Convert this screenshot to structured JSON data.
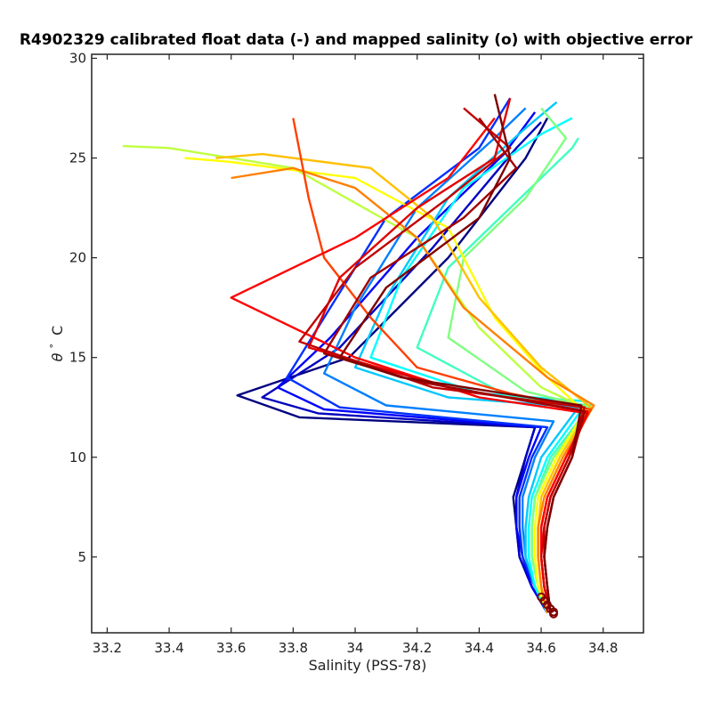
{
  "chart_data": {
    "type": "line",
    "title": "R4902329 calibrated float data (-) and mapped salinity (o) with objective error",
    "xlabel": "Salinity (PSS-78)",
    "ylabel_symbol": "θ",
    "ylabel_unit": "C",
    "xlim": [
      33.15,
      34.93
    ],
    "ylim": [
      1.2,
      30.2
    ],
    "x_ticks": [
      "33.2",
      "33.4",
      "33.6",
      "33.8",
      "34",
      "34.2",
      "34.4",
      "34.6",
      "34.8"
    ],
    "y_ticks": [
      "5",
      "10",
      "15",
      "20",
      "25",
      "30"
    ],
    "grid": false,
    "legend": "none",
    "colormap": "jet",
    "colormap_stops": [
      "#00007f",
      "#0000ff",
      "#00ffff",
      "#ffff00",
      "#ff0000",
      "#7f0000"
    ],
    "series": [
      {
        "color": "#00007f",
        "x": [
          34.62,
          34.57,
          34.53,
          34.52,
          34.51,
          34.55,
          34.58,
          33.82,
          33.62,
          33.98,
          34.3,
          34.55,
          34.62
        ],
        "y": [
          2.2,
          3.5,
          5.0,
          6.5,
          8.0,
          10.0,
          11.5,
          12.0,
          13.1,
          15.0,
          20.0,
          25.0,
          27.0
        ]
      },
      {
        "color": "#0000c0",
        "x": [
          34.62,
          34.57,
          34.53,
          34.52,
          34.52,
          34.55,
          34.58,
          33.88,
          33.7,
          33.95,
          34.25,
          34.52,
          34.6
        ],
        "y": [
          2.2,
          3.5,
          5.0,
          6.5,
          8.0,
          10.0,
          11.5,
          12.2,
          13.0,
          15.5,
          20.5,
          25.5,
          26.8
        ]
      },
      {
        "color": "#0000ff",
        "x": [
          34.62,
          34.57,
          34.54,
          34.52,
          34.52,
          34.56,
          34.6,
          33.9,
          33.75,
          33.92,
          34.2,
          34.48,
          34.58
        ],
        "y": [
          2.2,
          3.5,
          5.0,
          6.5,
          8.0,
          10.0,
          11.5,
          12.4,
          13.5,
          16.0,
          21.0,
          25.2,
          27.3
        ]
      },
      {
        "color": "#0030ff",
        "x": [
          34.62,
          34.58,
          34.54,
          34.53,
          34.53,
          34.57,
          34.62,
          33.95,
          33.78,
          33.9,
          34.1,
          34.4,
          34.5
        ],
        "y": [
          2.2,
          3.5,
          5.0,
          6.5,
          8.0,
          10.0,
          11.5,
          12.5,
          14.0,
          17.0,
          22.0,
          25.5,
          28.0
        ]
      },
      {
        "color": "#0080ff",
        "x": [
          34.62,
          34.58,
          34.55,
          34.54,
          34.54,
          34.58,
          34.64,
          34.1,
          33.9,
          34.0,
          34.2,
          34.45,
          34.55
        ],
        "y": [
          2.2,
          3.5,
          5.0,
          6.5,
          8.0,
          10.0,
          11.8,
          12.6,
          14.2,
          17.5,
          22.5,
          26.0,
          27.5
        ]
      },
      {
        "color": "#00c8ff",
        "x": [
          34.62,
          34.58,
          34.55,
          34.55,
          34.56,
          34.6,
          34.72,
          34.3,
          34.0,
          34.1,
          34.3,
          34.55,
          34.65
        ],
        "y": [
          2.2,
          3.5,
          5.0,
          6.5,
          8.0,
          10.0,
          12.5,
          13.0,
          14.5,
          18.0,
          23.0,
          26.5,
          27.8
        ]
      },
      {
        "color": "#00ffff",
        "x": [
          34.62,
          34.58,
          34.56,
          34.56,
          34.57,
          34.62,
          34.75,
          34.4,
          34.05,
          34.15,
          34.35,
          34.6,
          34.7
        ],
        "y": [
          2.2,
          3.5,
          5.0,
          6.5,
          8.0,
          10.0,
          12.8,
          13.2,
          15.0,
          19.0,
          23.5,
          26.2,
          27.0
        ]
      },
      {
        "color": "#40ffbf",
        "x": [
          34.62,
          34.59,
          34.57,
          34.57,
          34.58,
          34.63,
          34.76,
          34.5,
          34.2,
          34.3,
          34.5,
          34.7,
          34.72
        ],
        "y": [
          2.2,
          3.5,
          5.0,
          6.5,
          8.0,
          10.0,
          12.6,
          13.0,
          15.5,
          19.5,
          22.5,
          25.5,
          26.0
        ]
      },
      {
        "color": "#80ff80",
        "x": [
          34.62,
          34.59,
          34.57,
          34.57,
          34.58,
          34.64,
          34.76,
          34.55,
          34.3,
          34.35,
          34.55,
          34.68,
          34.6
        ],
        "y": [
          2.2,
          3.5,
          5.0,
          6.5,
          8.0,
          10.0,
          12.5,
          13.3,
          16.0,
          20.0,
          23.0,
          26.0,
          27.5
        ]
      },
      {
        "color": "#bfff40",
        "x": [
          34.62,
          34.59,
          34.58,
          34.58,
          34.59,
          34.65,
          34.75,
          34.6,
          34.4,
          34.2,
          33.8,
          33.4,
          33.25
        ],
        "y": [
          2.2,
          3.5,
          5.0,
          6.5,
          8.0,
          10.0,
          12.4,
          13.5,
          16.5,
          21.0,
          24.5,
          25.5,
          25.6
        ]
      },
      {
        "color": "#ffff00",
        "x": [
          34.62,
          34.59,
          34.58,
          34.58,
          34.59,
          34.65,
          34.74,
          34.62,
          34.45,
          34.3,
          34.0,
          33.6,
          33.45
        ],
        "y": [
          2.2,
          3.5,
          5.0,
          6.5,
          8.0,
          10.0,
          12.3,
          14.0,
          17.0,
          21.5,
          24.0,
          24.8,
          25.0
        ]
      },
      {
        "color": "#ffc000",
        "x": [
          34.62,
          34.6,
          34.59,
          34.59,
          34.6,
          34.66,
          34.76,
          34.6,
          34.4,
          34.25,
          34.05,
          33.7,
          33.55
        ],
        "y": [
          2.2,
          3.5,
          5.0,
          6.5,
          8.0,
          10.0,
          12.5,
          14.5,
          18.0,
          22.0,
          24.5,
          25.2,
          25.0
        ]
      },
      {
        "color": "#ff8000",
        "x": [
          34.62,
          34.6,
          34.59,
          34.59,
          34.61,
          34.67,
          34.77,
          34.62,
          34.35,
          34.2,
          34.0,
          33.8,
          33.6
        ],
        "y": [
          2.2,
          3.5,
          5.0,
          6.5,
          8.0,
          10.0,
          12.6,
          14.0,
          17.5,
          21.0,
          23.5,
          24.5,
          24.0
        ]
      },
      {
        "color": "#ff4000",
        "x": [
          34.63,
          34.61,
          34.6,
          34.6,
          34.62,
          34.68,
          34.76,
          34.5,
          34.2,
          34.05,
          33.9,
          33.85,
          33.8
        ],
        "y": [
          2.2,
          3.5,
          5.0,
          6.5,
          8.0,
          10.0,
          12.4,
          13.2,
          14.5,
          17.0,
          20.0,
          23.0,
          27.0
        ]
      },
      {
        "color": "#ff0000",
        "x": [
          34.63,
          34.61,
          34.6,
          34.6,
          34.62,
          34.68,
          34.75,
          34.4,
          34.0,
          33.6,
          34.0,
          34.3,
          34.45
        ],
        "y": [
          2.2,
          3.5,
          5.0,
          6.5,
          8.0,
          10.0,
          12.2,
          13.0,
          15.0,
          18.0,
          21.0,
          24.0,
          27.0
        ]
      },
      {
        "color": "#e00000",
        "x": [
          34.63,
          34.61,
          34.6,
          34.61,
          34.63,
          34.69,
          34.75,
          34.3,
          33.85,
          33.95,
          34.2,
          34.45,
          34.5
        ],
        "y": [
          2.2,
          3.5,
          5.0,
          6.5,
          8.0,
          10.0,
          12.3,
          13.5,
          15.5,
          19.0,
          22.5,
          25.0,
          28.0
        ]
      },
      {
        "color": "#c00000",
        "x": [
          34.63,
          34.62,
          34.61,
          34.61,
          34.63,
          34.69,
          34.74,
          34.25,
          33.82,
          34.0,
          34.3,
          34.5,
          34.35
        ],
        "y": [
          2.2,
          3.5,
          5.0,
          6.5,
          8.0,
          10.0,
          12.5,
          13.5,
          15.8,
          19.5,
          23.0,
          25.5,
          27.5
        ]
      },
      {
        "color": "#a00000",
        "x": [
          34.63,
          34.62,
          34.61,
          34.62,
          34.64,
          34.7,
          34.74,
          34.2,
          33.9,
          34.05,
          34.35,
          34.52,
          34.4
        ],
        "y": [
          2.2,
          3.5,
          5.0,
          6.5,
          8.0,
          10.0,
          12.3,
          13.8,
          15.2,
          19.0,
          22.0,
          24.5,
          27.0
        ]
      },
      {
        "color": "#7f0000",
        "x": [
          34.63,
          34.62,
          34.61,
          34.62,
          34.64,
          34.7,
          34.73,
          34.15,
          33.95,
          34.1,
          34.4,
          34.5,
          34.45
        ],
        "y": [
          2.2,
          3.5,
          5.0,
          6.5,
          8.0,
          10.0,
          12.6,
          14.0,
          15.0,
          18.5,
          22.0,
          25.0,
          28.2
        ]
      }
    ],
    "mapped_points": {
      "color": "#7f0000",
      "x": [
        34.6,
        34.61,
        34.62,
        34.63,
        34.64,
        34.64
      ],
      "y": [
        3.0,
        2.8,
        2.6,
        2.4,
        2.25,
        2.15
      ]
    }
  }
}
